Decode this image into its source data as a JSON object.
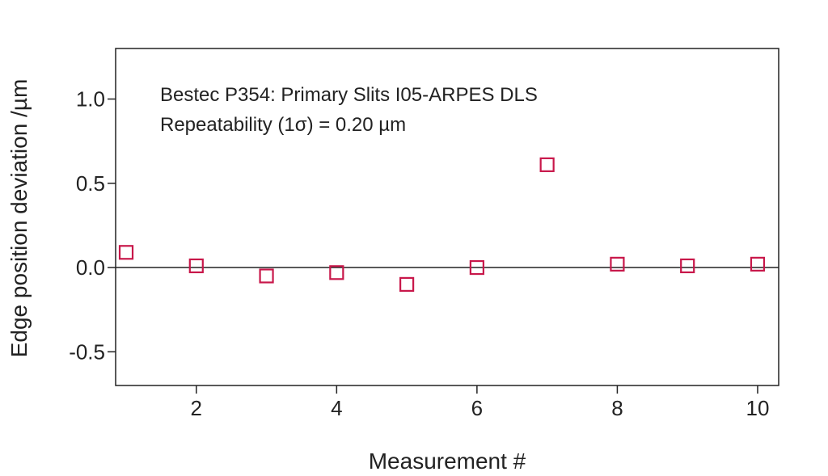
{
  "chart_data": {
    "type": "scatter",
    "title": "",
    "xlabel": "Measurement #",
    "ylabel": "Edge position deviation /µm",
    "annotations": [
      "Bestec P354: Primary Slits I05-ARPES DLS",
      "Repeatability (1σ) = 0.20 µm"
    ],
    "xlim": [
      0.85,
      10.3
    ],
    "ylim": [
      -0.7,
      1.3
    ],
    "x_ticks": [
      2,
      4,
      6,
      8,
      10
    ],
    "y_ticks": [
      1.0,
      0.5,
      0.0,
      -0.5
    ],
    "x_tick_labels": [
      "2",
      "4",
      "6",
      "8",
      "10"
    ],
    "y_tick_labels": [
      "1.0",
      "0.5",
      "0.0",
      "-0.5"
    ],
    "zero_line": true,
    "grid": false,
    "marker": "open-square",
    "marker_color": "#c8174a",
    "series": [
      {
        "x": [
          1,
          2,
          3,
          4,
          5,
          6,
          7,
          8,
          9,
          10
        ],
        "y": [
          0.09,
          0.01,
          -0.05,
          -0.03,
          -0.1,
          0.0,
          0.61,
          0.02,
          0.01,
          0.02
        ]
      }
    ]
  }
}
